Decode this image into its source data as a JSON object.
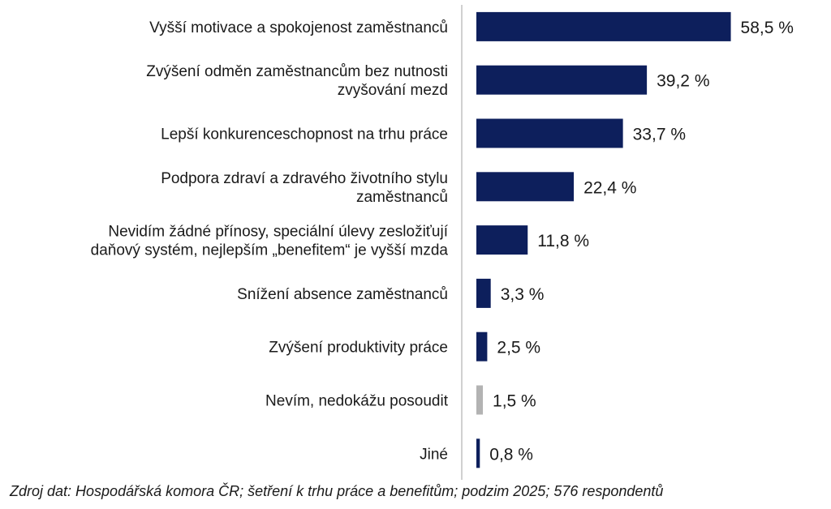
{
  "chart_data": {
    "type": "bar",
    "orientation": "horizontal",
    "categories": [
      [
        "Vyšší motivace a spokojenost zaměstnanců"
      ],
      [
        "Zvýšení odměn zaměstnancům  bez nutnosti",
        "zvyšování mezd"
      ],
      [
        "Lepší konkurenceschopnost na trhu práce"
      ],
      [
        "Podpora zdraví a zdravého životního stylu",
        "zaměstnanců"
      ],
      [
        "Nevidím žádné přínosy, speciální úlevy zesložiťují",
        "daňový systém, nejlepším „benefitem“ je vyšší mzda"
      ],
      [
        "Snížení  absence zaměstnanců"
      ],
      [
        "Zvýšení produktivity práce"
      ],
      [
        "Nevím,  nedokážu posoudit"
      ],
      [
        "Jiné"
      ]
    ],
    "values": [
      58.5,
      39.2,
      33.7,
      22.4,
      11.8,
      3.3,
      2.5,
      1.5,
      0.8
    ],
    "value_labels": [
      "58,5 %",
      "39,2 %",
      "33,7 %",
      "22,4 %",
      "11,8 %",
      "3,3 %",
      "2,5 %",
      "1,5 %",
      "0,8 %"
    ],
    "bar_colors": [
      "#0d1f5c",
      "#0d1f5c",
      "#0d1f5c",
      "#0d1f5c",
      "#0d1f5c",
      "#0d1f5c",
      "#0d1f5c",
      "#b3b3b3",
      "#0d1f5c"
    ],
    "axis_color": "#d0d0d0",
    "xlim": [
      0,
      60
    ],
    "grid": false,
    "legend": "none"
  },
  "source": "Zdroj dat: Hospodářská komora ČR; šetření k trhu práce a benefitům; podzim 2025; 576 respondentů"
}
